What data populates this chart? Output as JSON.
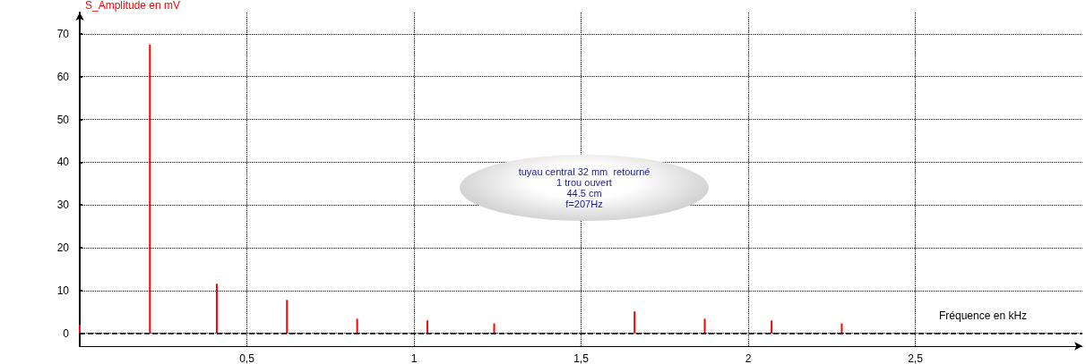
{
  "chart_data": {
    "type": "bar",
    "xlabel": "Fréquence en kHz",
    "ylabel": "S_Amplitude en mV",
    "x": [
      0,
      0.21,
      0.41,
      0.62,
      0.83,
      1.04,
      1.24,
      1.66,
      1.87,
      2.07,
      2.28
    ],
    "series": [
      {
        "color": "#ff0000",
        "values": [
          2,
          67.5,
          11.6,
          7.8,
          3.4,
          3.0,
          2.3,
          5.1,
          3.4,
          3.0,
          2.3
        ]
      }
    ],
    "xlim": [
      0,
      3
    ],
    "xticks": [
      {
        "value": 0.5,
        "label": "0,5"
      },
      1,
      {
        "value": 1.5,
        "label": "1,5"
      },
      2,
      {
        "value": 2.5,
        "label": "2,5"
      }
    ],
    "ylim": [
      -3,
      75
    ],
    "yticks": [
      0,
      10,
      20,
      30,
      40,
      50,
      60,
      70
    ],
    "ref_lines": [
      {
        "axis": "y",
        "value": 0,
        "line_style": "dashed",
        "color": "#000000"
      }
    ],
    "annotations": [
      "tuyau central 32 mm  retourné\n1 trou ouvert\n44.5 cm\nf=207Hz"
    ],
    "grid": true
  }
}
